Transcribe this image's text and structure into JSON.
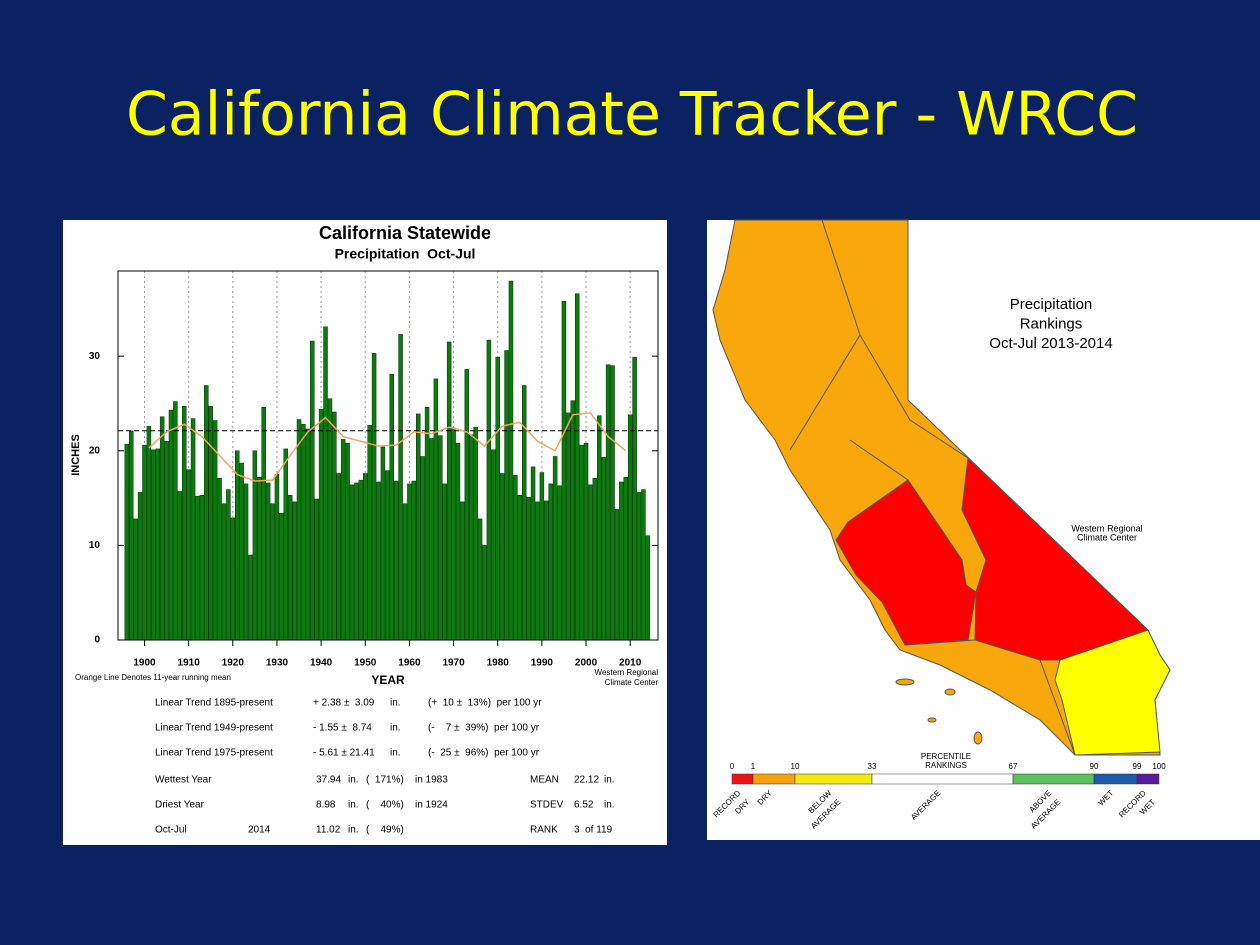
{
  "title": "California Climate Tracker - WRCC",
  "chart_data": {
    "type": "bar",
    "title": "California Statewide",
    "subtitle": "Precipitation  Oct-Jul",
    "ylabel": "INCHES",
    "xlabel": "YEAR",
    "note": "Orange Line Denotes 11-year running mean",
    "credit": [
      "Western Regional",
      "Climate Center"
    ],
    "color": "#0d7a10",
    "x": [
      1896,
      1897,
      1898,
      1899,
      1900,
      1901,
      1902,
      1903,
      1904,
      1905,
      1906,
      1907,
      1908,
      1909,
      1910,
      1911,
      1912,
      1913,
      1914,
      1915,
      1916,
      1917,
      1918,
      1919,
      1920,
      1921,
      1922,
      1923,
      1924,
      1925,
      1926,
      1927,
      1928,
      1929,
      1930,
      1931,
      1932,
      1933,
      1934,
      1935,
      1936,
      1937,
      1938,
      1939,
      1940,
      1941,
      1942,
      1943,
      1944,
      1945,
      1946,
      1947,
      1948,
      1949,
      1950,
      1951,
      1952,
      1953,
      1954,
      1955,
      1956,
      1957,
      1958,
      1959,
      1960,
      1961,
      1962,
      1963,
      1964,
      1965,
      1966,
      1967,
      1968,
      1969,
      1970,
      1971,
      1972,
      1973,
      1974,
      1975,
      1976,
      1977,
      1978,
      1979,
      1980,
      1981,
      1982,
      1983,
      1984,
      1985,
      1986,
      1987,
      1988,
      1989,
      1990,
      1991,
      1992,
      1993,
      1994,
      1995,
      1996,
      1997,
      1998,
      1999,
      2000,
      2001,
      2002,
      2003,
      2004,
      2005,
      2006,
      2007,
      2008,
      2009,
      2010,
      2011,
      2012,
      2013,
      2014
    ],
    "values": [
      20.7,
      22.1,
      12.8,
      15.6,
      20.6,
      22.6,
      20.1,
      20.2,
      23.6,
      21.0,
      24.3,
      25.2,
      15.7,
      24.7,
      18.0,
      23.4,
      15.2,
      15.3,
      26.9,
      24.7,
      23.2,
      17.1,
      14.4,
      15.9,
      12.9,
      20.0,
      18.7,
      16.5,
      8.98,
      20.0,
      17.2,
      24.6,
      16.6,
      14.4,
      17.5,
      13.4,
      20.2,
      15.3,
      14.6,
      23.3,
      22.8,
      22.3,
      31.6,
      14.9,
      24.4,
      33.1,
      25.5,
      24.1,
      17.6,
      21.2,
      20.8,
      16.4,
      16.6,
      16.9,
      17.6,
      22.7,
      30.3,
      16.7,
      20.4,
      17.9,
      28.1,
      16.8,
      32.3,
      14.4,
      16.5,
      16.8,
      23.9,
      19.4,
      24.6,
      21.3,
      27.6,
      21.6,
      16.5,
      31.5,
      22.4,
      20.8,
      14.6,
      28.6,
      21.7,
      22.5,
      12.8,
      10.0,
      31.7,
      20.1,
      29.9,
      17.6,
      30.6,
      37.94,
      17.4,
      15.3,
      26.9,
      15.1,
      18.3,
      14.6,
      17.7,
      14.7,
      16.5,
      19.4,
      16.3,
      35.8,
      24.0,
      25.3,
      36.6,
      20.6,
      20.8,
      16.4,
      17.1,
      23.7,
      19.3,
      29.1,
      29.0,
      13.8,
      16.7,
      17.2,
      23.8,
      29.9,
      15.6,
      15.9,
      11.02
    ],
    "running_mean": {
      "type": "line",
      "color": "#f4a460",
      "x": [
        1901,
        1905,
        1909,
        1913,
        1917,
        1921,
        1925,
        1929,
        1933,
        1937,
        1941,
        1945,
        1949,
        1953,
        1957,
        1961,
        1965,
        1969,
        1973,
        1977,
        1981,
        1985,
        1989,
        1993,
        1997,
        2001,
        2005,
        2009
      ],
      "values": [
        20.3,
        22.0,
        22.8,
        21.5,
        19.5,
        17.5,
        16.8,
        16.9,
        19.5,
        22.0,
        23.5,
        21.5,
        21.0,
        20.5,
        20.6,
        22.0,
        21.8,
        22.5,
        22.0,
        20.5,
        22.6,
        23.0,
        21.0,
        20.0,
        23.8,
        24.0,
        21.5,
        20.0
      ]
    },
    "xlim": [
      1894,
      2016.3
    ],
    "xticks": [
      1900,
      1910,
      1920,
      1930,
      1940,
      1950,
      1960,
      1970,
      1980,
      1990,
      2000,
      2010
    ],
    "ylim": [
      0,
      39
    ],
    "yticks": [
      0,
      10,
      20,
      30
    ],
    "grid": true
  },
  "stats": {
    "rows": [
      [
        "Linear Trend 1895-present",
        "+ 2.38 ±  3.09",
        "in.",
        "(+  10 ±  13%)  per 100 yr"
      ],
      [
        "Linear Trend 1949-present",
        "- 1.55 ±  8.74",
        "in.",
        "(-    7 ±  39%)  per 100 yr"
      ],
      [
        "Linear Trend 1975-present",
        "- 5.61 ± 21.41",
        "in.",
        "(-  25 ±  96%)  per 100 yr"
      ],
      [
        "Wettest Year",
        "37.94",
        "in.",
        "(  171%)",
        "in 1983",
        "MEAN",
        22.12,
        "in."
      ],
      [
        "Driest Year",
        "8.98",
        "in.",
        "(    40%)",
        "in 1924",
        "STDEV",
        "6.52",
        "in."
      ],
      [
        "Oct-Jul",
        "2014",
        "11.02",
        "in.",
        "(    49%)",
        "RANK",
        "3  of 119"
      ]
    ]
  },
  "map": {
    "title": [
      "Precipitation",
      "Rankings",
      "Oct-Jul 2013-2014"
    ],
    "credit": [
      "Western Regional",
      "Climate Center"
    ],
    "legend": {
      "title": [
        "PERCENTILE",
        "RANKINGS"
      ],
      "ticks": [
        0,
        1,
        10,
        33,
        67,
        90,
        99,
        100
      ],
      "classes": [
        {
          "label": [
            "RECORD",
            "DRY"
          ],
          "color": "#ee1111"
        },
        {
          "label": [
            "DRY"
          ],
          "color": "#f5a00c"
        },
        {
          "label": [
            "BELOW",
            "AVERAGE"
          ],
          "color": "#f2ea10"
        },
        {
          "label": [
            "AVERAGE"
          ],
          "color": "#ffffff"
        },
        {
          "label": [
            "ABOVE",
            "AVERAGE"
          ],
          "color": "#5cc05c"
        },
        {
          "label": [
            "WET"
          ],
          "color": "#1a5aa8"
        },
        {
          "label": [
            "RECORD",
            "WET"
          ],
          "color": "#5a1a99"
        }
      ]
    }
  }
}
